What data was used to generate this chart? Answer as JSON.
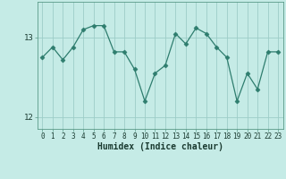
{
  "xlabel": "Humidex (Indice chaleur)",
  "x": [
    0,
    1,
    2,
    3,
    4,
    5,
    6,
    7,
    8,
    9,
    10,
    11,
    12,
    13,
    14,
    15,
    16,
    17,
    18,
    19,
    20,
    21,
    22,
    23
  ],
  "y": [
    12.75,
    12.88,
    12.72,
    12.88,
    13.1,
    13.15,
    13.15,
    12.82,
    12.82,
    12.6,
    12.2,
    12.55,
    12.65,
    13.05,
    12.92,
    13.12,
    13.05,
    12.88,
    12.75,
    12.2,
    12.55,
    12.35,
    12.82,
    12.82
  ],
  "line_color": "#2e7d6e",
  "marker": "D",
  "marker_size": 2.5,
  "bg_color": "#c5ebe6",
  "grid_color": "#9dcdc7",
  "ylim": [
    11.85,
    13.45
  ],
  "yticks": [
    12,
    13
  ],
  "figsize": [
    3.2,
    2.0
  ],
  "dpi": 100,
  "xlabel_fontsize": 7,
  "tick_fontsize": 5.5,
  "ytick_fontsize": 6.5
}
